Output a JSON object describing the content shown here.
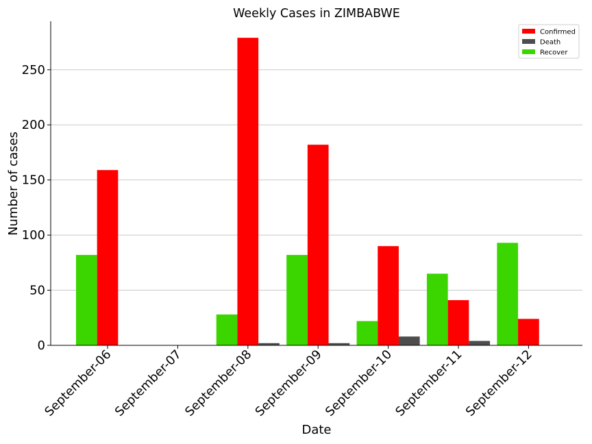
{
  "chart_data": {
    "type": "bar",
    "title": "Weekly Cases in ZIMBABWE",
    "xlabel": "Date",
    "ylabel": "Number of cases",
    "categories": [
      "September-06",
      "September-07",
      "September-08",
      "September-09",
      "September-10",
      "September-11",
      "September-12"
    ],
    "series": [
      {
        "name": "Recover",
        "color": "#3bd600",
        "values": [
          82,
          0,
          28,
          82,
          22,
          65,
          93
        ]
      },
      {
        "name": "Confirmed",
        "color": "#ff0000",
        "values": [
          159,
          0,
          279,
          182,
          90,
          41,
          24
        ]
      },
      {
        "name": "Death",
        "color": "#4d4d4d",
        "values": [
          0,
          0,
          2,
          2,
          8,
          4,
          0
        ]
      }
    ],
    "legend_order": [
      "Confirmed",
      "Death",
      "Recover"
    ],
    "legend_position": "top-right",
    "ylim": [
      0,
      294
    ],
    "yticks": [
      0,
      50,
      100,
      150,
      200,
      250
    ],
    "grid": "horizontal"
  }
}
